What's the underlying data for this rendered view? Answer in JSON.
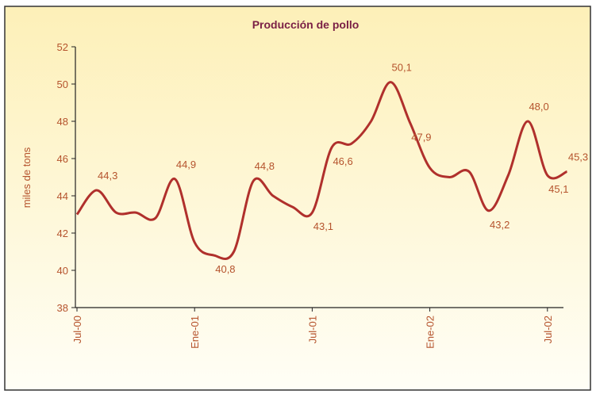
{
  "chart_data": {
    "type": "line",
    "title": "Producción de pollo",
    "y_label": "miles de tons",
    "categories": [
      "Jul-00",
      null,
      null,
      null,
      null,
      null,
      "Ene-01",
      null,
      null,
      null,
      null,
      null,
      "Jul-01",
      null,
      null,
      null,
      null,
      null,
      "Ene-02",
      null,
      null,
      null,
      null,
      null,
      "Jul-02",
      null
    ],
    "series": [
      {
        "name": "Producción",
        "color": "#b0302c",
        "values": [
          43.0,
          44.3,
          43.1,
          43.1,
          42.8,
          44.9,
          41.5,
          40.8,
          41.0,
          44.8,
          44.0,
          43.4,
          43.1,
          46.6,
          46.8,
          48.0,
          50.1,
          47.9,
          45.5,
          45.0,
          45.3,
          43.2,
          45.1,
          48.0,
          45.1,
          45.3
        ],
        "value_labels": [
          null,
          "44,3",
          null,
          null,
          null,
          "44,9",
          null,
          "40,8",
          null,
          "44,8",
          null,
          null,
          "43,1",
          "46,6",
          null,
          null,
          "50,1",
          "47,9",
          null,
          null,
          null,
          "43,2",
          null,
          "48,0",
          "45,1",
          "45,3"
        ]
      }
    ],
    "ylim": [
      38,
      52
    ],
    "yticks": [
      38,
      40,
      42,
      44,
      46,
      48,
      50,
      52
    ]
  }
}
